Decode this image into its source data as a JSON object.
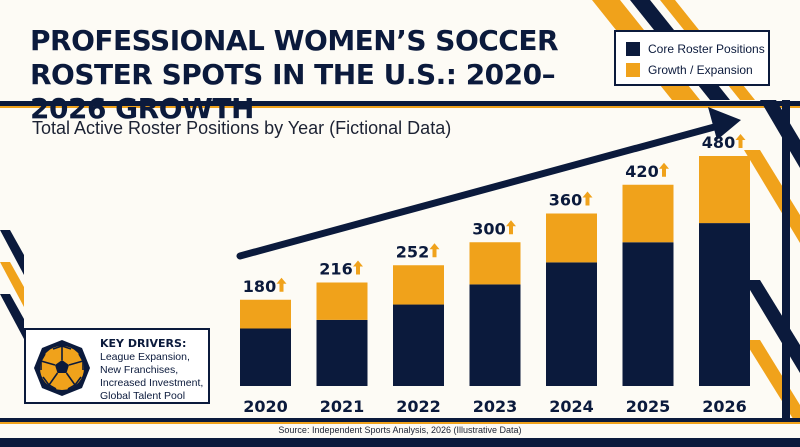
{
  "title": "PROFESSIONAL WOMEN’S SOCCER ROSTER SPOTS IN THE U.S.: 2020–2026 GROWTH",
  "subtitle": "Total Active Roster Positions by Year (Fictional Data)",
  "legend": {
    "items": [
      {
        "label": "Core Roster Positions",
        "color": "#0b1a3c"
      },
      {
        "label": "Growth / Expansion",
        "color": "#f0a21b"
      }
    ]
  },
  "drivers": {
    "heading": "KEY DRIVERS:",
    "lines": [
      "League Expansion,",
      "New Franchises,",
      "Increased Investment,",
      "Global Talent Pool"
    ],
    "icon": "soccer-ball-icon"
  },
  "source": "Source: Independent Sports Analysis, 2026 (Illustrative Data)",
  "colors": {
    "navy": "#0b1a3c",
    "orange": "#f0a21b",
    "background": "#fdfbf5"
  },
  "chart_data": {
    "type": "bar",
    "stacked": true,
    "categories": [
      "2020",
      "2021",
      "2022",
      "2023",
      "2024",
      "2025",
      "2026"
    ],
    "series": [
      {
        "name": "Core Roster Positions",
        "values": [
          120,
          138,
          170,
          212,
          258,
          300,
          340
        ]
      },
      {
        "name": "Growth / Expansion",
        "values": [
          60,
          78,
          82,
          88,
          102,
          120,
          140
        ]
      }
    ],
    "totals": [
      180,
      216,
      252,
      300,
      360,
      420,
      480
    ],
    "ylim": [
      0,
      480
    ],
    "grid": false,
    "legend_position": "top-right",
    "annotations": [
      "upward trend arrow",
      "up arrow above each total"
    ]
  }
}
